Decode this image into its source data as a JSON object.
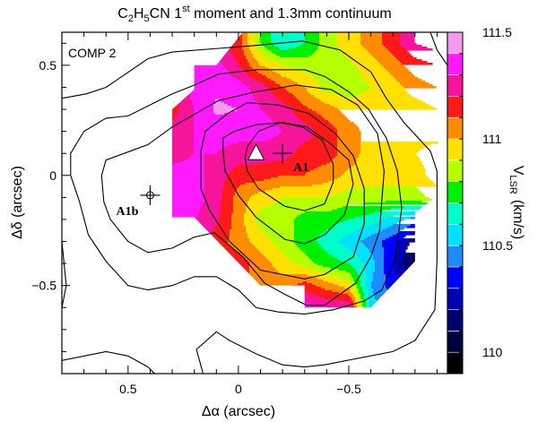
{
  "chart_data": {
    "type": "heatmap",
    "title_parts": [
      "C",
      "2",
      "H",
      "5",
      "CN 1",
      "st",
      " moment and 1.3mm continuum"
    ],
    "panel_label": "COMP 2",
    "xlabel": "Δα (arcsec)",
    "ylabel": "Δδ (arcsec)",
    "xlim": [
      0.8,
      -0.947
    ],
    "ylim": [
      -0.9,
      0.65
    ],
    "x_ticks": [
      {
        "v": 0.5,
        "label": "0.5"
      },
      {
        "v": 0,
        "label": "0"
      },
      {
        "v": -0.5,
        "label": "−0.5"
      }
    ],
    "y_ticks": [
      {
        "v": 0.5,
        "label": "0.5"
      },
      {
        "v": 0,
        "label": "0"
      },
      {
        "v": -0.5,
        "label": "−0.5"
      }
    ],
    "minor_tick_step": 0.1,
    "colorbar": {
      "label_main": "V",
      "label_sub": "LSR",
      "label_unit": "(km/s)",
      "range": [
        109.9,
        111.5
      ],
      "step": 0.1,
      "ticks": [
        {
          "v": 111.5,
          "label": "111.5"
        },
        {
          "v": 111,
          "label": "111"
        },
        {
          "v": 110.5,
          "label": "110.5"
        },
        {
          "v": 110,
          "label": "110"
        }
      ],
      "colors": [
        "#000000",
        "#00003c",
        "#00006e",
        "#0000b4",
        "#0000ff",
        "#1e8cff",
        "#00e0ff",
        "#00ffc8",
        "#00f000",
        "#b4ff00",
        "#ffe000",
        "#ff8c00",
        "#ff1a1a",
        "#f5149b",
        "#ff19ff",
        "#f59af0"
      ]
    },
    "velocity_grid": {
      "x": [
        0.3,
        0.2,
        0.1,
        0.0,
        -0.1,
        -0.2,
        -0.3,
        -0.4,
        -0.5,
        -0.6,
        -0.7,
        -0.8,
        -0.9
      ],
      "y": [
        0.6,
        0.5,
        0.4,
        0.3,
        0.2,
        0.1,
        0.0,
        -0.1,
        -0.2,
        -0.3,
        -0.4,
        -0.5,
        -0.6
      ],
      "values": [
        [
          111.15,
          111.2,
          111.2,
          111.15,
          110.8,
          110.6,
          110.7,
          110.85,
          110.95,
          111.05,
          111.15,
          111.3,
          111.35
        ],
        [
          111.2,
          111.35,
          111.35,
          111.2,
          111.0,
          110.9,
          110.85,
          110.85,
          110.88,
          110.95,
          111.05,
          111.15,
          111.2
        ],
        [
          111.2,
          111.35,
          111.38,
          111.35,
          111.25,
          111.1,
          111.0,
          110.85,
          110.85,
          110.9,
          110.95,
          111.05,
          111.1
        ],
        [
          111.15,
          111.3,
          111.42,
          111.4,
          111.3,
          111.25,
          111.12,
          111.05,
          110.95,
          110.95,
          110.95,
          110.95,
          111.0
        ],
        [
          111.25,
          111.3,
          111.35,
          111.35,
          111.35,
          111.3,
          111.25,
          111.15,
          111.05,
          110.95,
          110.95,
          110.95,
          110.95
        ],
        [
          111.25,
          111.3,
          111.3,
          111.25,
          111.25,
          111.25,
          111.15,
          111.15,
          111.05,
          110.95,
          110.95,
          111.0,
          111.05
        ],
        [
          111.35,
          111.35,
          111.25,
          111.15,
          111.15,
          111.1,
          111.1,
          111.05,
          110.98,
          110.95,
          110.95,
          110.95,
          111.05
        ],
        [
          111.35,
          111.35,
          111.25,
          111.05,
          110.95,
          110.9,
          110.9,
          110.9,
          110.85,
          110.85,
          110.85,
          110.85,
          110.95
        ],
        [
          111.3,
          111.3,
          111.22,
          111.05,
          110.85,
          110.85,
          110.75,
          110.75,
          110.7,
          110.65,
          110.55,
          110.45,
          110.5
        ],
        [
          111.3,
          111.25,
          111.15,
          111.05,
          110.95,
          110.85,
          110.75,
          110.65,
          110.55,
          110.45,
          110.35,
          110.15,
          110.2
        ],
        [
          111.2,
          111.2,
          111.2,
          111.15,
          111.05,
          110.95,
          110.85,
          110.75,
          110.7,
          110.55,
          110.3,
          110.05,
          110.1
        ],
        [
          111.2,
          111.2,
          111.2,
          111.15,
          111.05,
          111.05,
          111.15,
          111.05,
          110.95,
          110.5,
          110.35,
          110.2,
          110.2
        ],
        [
          111.3,
          111.3,
          111.3,
          111.3,
          111.3,
          111.35,
          111.35,
          111.3,
          111.3,
          110.55,
          110.4,
          110.3,
          110.3
        ]
      ],
      "mask_polygon": [
        [
          -0.02,
          0.65
        ],
        [
          0.1,
          0.5
        ],
        [
          0.2,
          0.5
        ],
        [
          0.2,
          0.39
        ],
        [
          0.3,
          0.3
        ],
        [
          0.3,
          -0.19
        ],
        [
          0.2,
          -0.19
        ],
        [
          -0.1,
          -0.5
        ],
        [
          -0.3,
          -0.5
        ],
        [
          -0.3,
          -0.6
        ],
        [
          -0.6,
          -0.6
        ],
        [
          -0.8,
          -0.39
        ],
        [
          -0.8,
          -0.17
        ],
        [
          -0.91,
          -0.085
        ],
        [
          -0.95,
          -0.08
        ],
        [
          -0.95,
          0.65
        ]
      ]
    },
    "continuum_contours": [
      [
        [
          0.8,
          0.35
        ],
        [
          0.69,
          0.37
        ],
        [
          0.6,
          0.4
        ],
        [
          0.41,
          0.53
        ],
        [
          0.3,
          0.56
        ],
        [
          -0.08,
          0.59
        ],
        [
          -0.29,
          0.61
        ],
        [
          -0.46,
          0.57
        ],
        [
          -0.6,
          0.47
        ],
        [
          -0.67,
          0.35
        ],
        [
          -0.75,
          0.24
        ],
        [
          -0.87,
          0.11
        ],
        [
          -0.9,
          0.02
        ],
        [
          -0.9,
          -0.38
        ],
        [
          -0.89,
          -0.61
        ],
        [
          -0.8,
          -0.75
        ],
        [
          -0.7,
          -0.8
        ],
        [
          -0.39,
          -0.86
        ],
        [
          -0.3,
          -0.87
        ],
        [
          -0.2,
          -0.86
        ],
        [
          -0.08,
          -0.81
        ],
        [
          0.04,
          -0.75
        ],
        [
          0.1,
          -0.71
        ],
        [
          0.19,
          -0.79
        ],
        [
          0.16,
          -0.9
        ]
      ],
      [
        [
          0.8,
          -0.84
        ],
        [
          0.6,
          -0.8
        ],
        [
          0.5,
          -0.82
        ],
        [
          0.41,
          -0.87
        ],
        [
          0.38,
          -0.9
        ]
      ],
      [
        [
          0.8,
          -0.3
        ],
        [
          0.78,
          -0.5
        ],
        [
          0.8,
          -0.6
        ]
      ],
      [
        [
          -0.87,
          0.65
        ],
        [
          -0.9,
          0.57
        ],
        [
          -0.947,
          0.5
        ]
      ],
      [
        [
          -0.08,
          0.48
        ],
        [
          0.09,
          0.46
        ],
        [
          0.2,
          0.41
        ],
        [
          0.3,
          0.37
        ],
        [
          0.5,
          0.27
        ],
        [
          0.6,
          0.26
        ],
        [
          0.7,
          0.2
        ],
        [
          0.76,
          0.1
        ],
        [
          0.76,
          0.0
        ],
        [
          0.72,
          -0.12
        ],
        [
          0.68,
          -0.27
        ],
        [
          0.6,
          -0.39
        ],
        [
          0.5,
          -0.5
        ],
        [
          0.41,
          -0.52
        ],
        [
          0.3,
          -0.5
        ],
        [
          0.2,
          -0.46
        ],
        [
          0.1,
          -0.46
        ],
        [
          0.0,
          -0.52
        ],
        [
          -0.08,
          -0.6
        ],
        [
          -0.18,
          -0.62
        ],
        [
          -0.3,
          -0.63
        ],
        [
          -0.43,
          -0.61
        ],
        [
          -0.57,
          -0.57
        ],
        [
          -0.65,
          -0.52
        ],
        [
          -0.71,
          -0.38
        ],
        [
          -0.74,
          -0.15
        ],
        [
          -0.72,
          0.02
        ],
        [
          -0.67,
          0.17
        ],
        [
          -0.59,
          0.3
        ],
        [
          -0.5,
          0.38
        ],
        [
          -0.39,
          0.45
        ],
        [
          -0.3,
          0.48
        ],
        [
          -0.08,
          0.48
        ]
      ],
      [
        [
          -0.66,
          0.02
        ],
        [
          -0.63,
          0.19
        ],
        [
          -0.54,
          0.32
        ],
        [
          -0.42,
          0.39
        ],
        [
          -0.26,
          0.41
        ],
        [
          -0.08,
          0.38
        ],
        [
          0.09,
          0.34
        ],
        [
          0.3,
          0.22
        ],
        [
          0.41,
          0.14
        ],
        [
          0.49,
          0.11
        ],
        [
          0.6,
          0.07
        ],
        [
          0.62,
          0.0
        ],
        [
          0.61,
          -0.12
        ],
        [
          0.58,
          -0.2
        ],
        [
          0.5,
          -0.3
        ],
        [
          0.41,
          -0.35
        ],
        [
          0.3,
          -0.33
        ],
        [
          0.2,
          -0.28
        ],
        [
          0.11,
          -0.26
        ],
        [
          -0.02,
          -0.37
        ],
        [
          -0.12,
          -0.49
        ],
        [
          -0.21,
          -0.54
        ],
        [
          -0.31,
          -0.59
        ],
        [
          -0.39,
          -0.59
        ],
        [
          -0.53,
          -0.49
        ],
        [
          -0.6,
          -0.37
        ],
        [
          -0.64,
          -0.25
        ],
        [
          -0.65,
          -0.11
        ],
        [
          -0.66,
          0.02
        ]
      ],
      [
        [
          0.17,
          0.02
        ],
        [
          0.17,
          0.11
        ],
        [
          0.15,
          0.2
        ],
        [
          0.05,
          0.28
        ],
        [
          -0.04,
          0.33
        ],
        [
          -0.18,
          0.32
        ],
        [
          -0.32,
          0.28
        ],
        [
          -0.44,
          0.19
        ],
        [
          -0.52,
          0.09
        ],
        [
          -0.57,
          -0.06
        ],
        [
          -0.57,
          -0.22
        ],
        [
          -0.52,
          -0.37
        ],
        [
          -0.39,
          -0.45
        ],
        [
          -0.3,
          -0.47
        ],
        [
          -0.1,
          -0.43
        ],
        [
          0.04,
          -0.3
        ],
        [
          0.13,
          -0.16
        ],
        [
          0.17,
          -0.06
        ],
        [
          0.17,
          0.02
        ]
      ],
      [
        [
          0.07,
          0.17
        ],
        [
          0.02,
          0.2
        ],
        [
          -0.08,
          0.23
        ],
        [
          -0.2,
          0.24
        ],
        [
          -0.31,
          0.22
        ],
        [
          -0.41,
          0.15
        ],
        [
          -0.5,
          0.07
        ],
        [
          -0.52,
          -0.04
        ],
        [
          -0.48,
          -0.18
        ],
        [
          -0.39,
          -0.27
        ],
        [
          -0.3,
          -0.31
        ],
        [
          -0.21,
          -0.29
        ],
        [
          -0.08,
          -0.19
        ],
        [
          0.0,
          -0.09
        ],
        [
          0.06,
          0.02
        ],
        [
          0.07,
          0.11
        ],
        [
          0.07,
          0.17
        ]
      ],
      [
        [
          -0.09,
          0.2
        ],
        [
          -0.19,
          0.24
        ],
        [
          -0.29,
          0.22
        ],
        [
          -0.38,
          0.16
        ],
        [
          -0.43,
          0.05
        ],
        [
          -0.43,
          -0.03
        ],
        [
          -0.39,
          -0.13
        ],
        [
          -0.3,
          -0.16
        ],
        [
          -0.21,
          -0.14
        ],
        [
          -0.09,
          -0.06
        ],
        [
          -0.04,
          0.02
        ],
        [
          -0.03,
          0.08
        ],
        [
          -0.04,
          0.13
        ],
        [
          -0.09,
          0.2
        ]
      ]
    ],
    "markers": [
      {
        "type": "triangle",
        "x": -0.08,
        "y": 0.1
      },
      {
        "type": "cross",
        "x": -0.2,
        "y": 0.1,
        "label": "A1"
      },
      {
        "type": "cross-circle",
        "x": 0.4,
        "y": -0.09,
        "label": "A1b"
      }
    ]
  }
}
